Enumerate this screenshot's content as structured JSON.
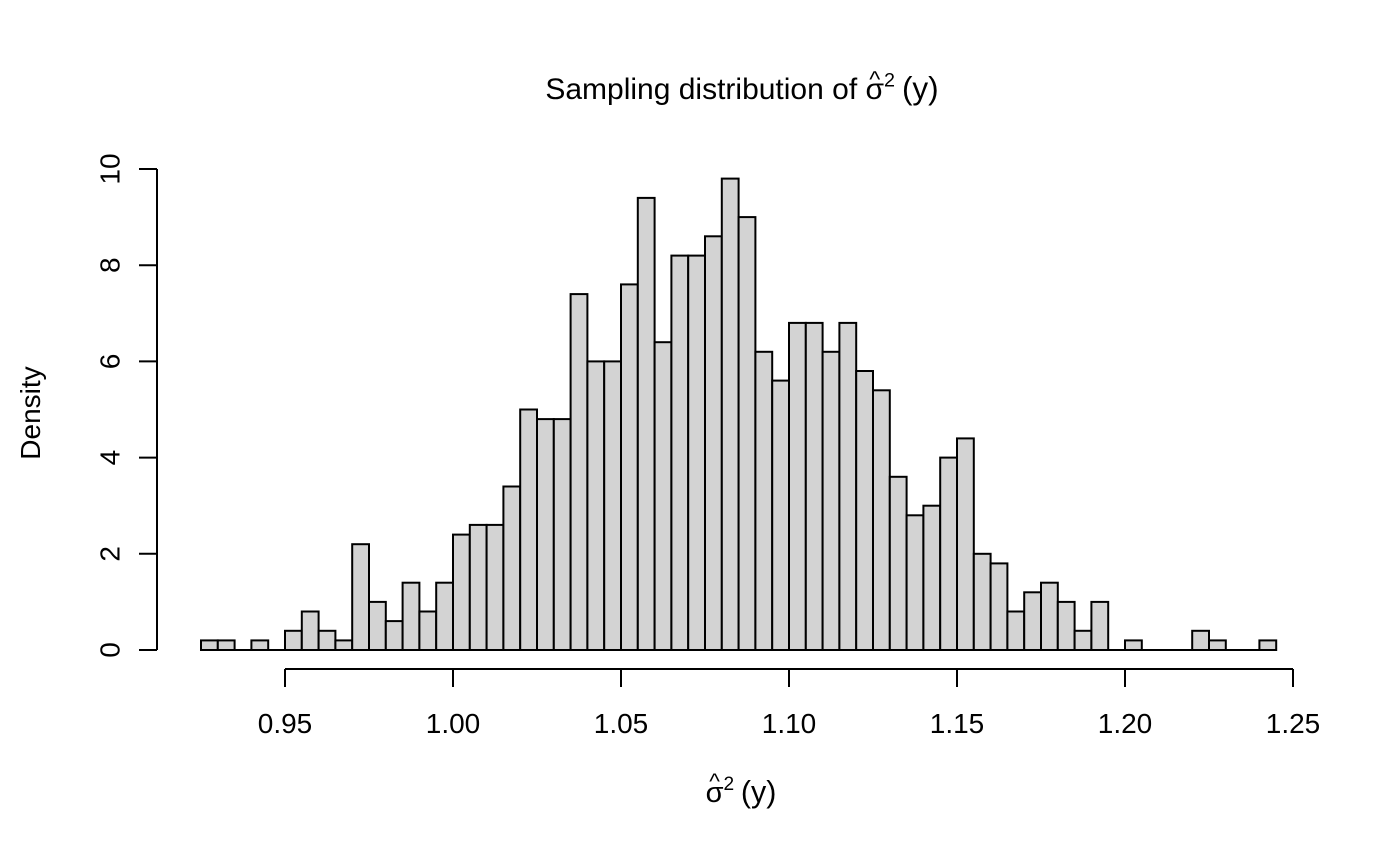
{
  "chart_data": {
    "type": "bar",
    "subtype": "histogram",
    "title": "Sampling distribution of σ̂² (y)",
    "xlabel": "σ̂² (y)",
    "ylabel": "Density",
    "bin_start": 0.925,
    "bin_width": 0.005,
    "densities": [
      0.2,
      0.2,
      0,
      0.2,
      0,
      0.4,
      0.8,
      0.4,
      0.2,
      2.2,
      1.0,
      0.6,
      1.4,
      0.8,
      1.4,
      2.4,
      2.6,
      2.6,
      3.4,
      5.0,
      4.8,
      4.8,
      7.4,
      6.0,
      6.0,
      7.6,
      9.4,
      6.4,
      8.2,
      8.2,
      8.6,
      9.8,
      9.0,
      6.2,
      5.6,
      6.8,
      6.8,
      6.2,
      6.8,
      5.8,
      5.4,
      3.6,
      2.8,
      3.0,
      4.0,
      4.4,
      2.0,
      1.8,
      0.8,
      1.2,
      1.4,
      1.0,
      0.4,
      1.0,
      0,
      0.2,
      0,
      0,
      0,
      0.4,
      0.2,
      0,
      0,
      0.2
    ],
    "x_ticks": [
      0.95,
      1.0,
      1.05,
      1.1,
      1.15,
      1.2,
      1.25
    ],
    "x_tick_labels": [
      "0.95",
      "1.00",
      "1.05",
      "1.10",
      "1.15",
      "1.20",
      "1.25"
    ],
    "y_ticks": [
      0,
      2,
      4,
      6,
      8,
      10
    ],
    "y_tick_labels": [
      "0",
      "2",
      "4",
      "6",
      "8",
      "10"
    ],
    "xlim": [
      0.95,
      1.25
    ],
    "ylim": [
      0,
      10
    ],
    "grid": false,
    "legend": "none",
    "bar_fill": "#d3d3d3",
    "bar_stroke": "#000000",
    "axis_color": "#000000",
    "text_color": "#000000",
    "background": "#ffffff"
  },
  "title_parts": {
    "prefix": "Sampling distribution of ",
    "caret": "^",
    "sigma": "σ",
    "sup": "2",
    "rest": "(y)"
  },
  "xlabel_parts": {
    "caret": "^",
    "sigma": "σ",
    "sup": "2",
    "rest": "(y)"
  },
  "ylabel_text": "Density"
}
